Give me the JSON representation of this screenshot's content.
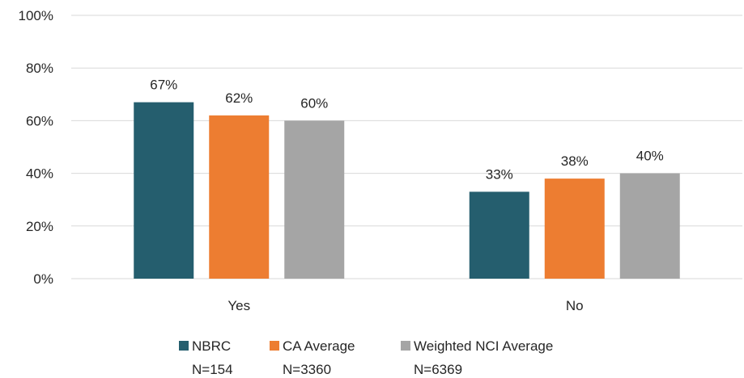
{
  "chart_data": {
    "type": "bar",
    "categories": [
      "Yes",
      "No"
    ],
    "series": [
      {
        "name": "NBRC",
        "sublabel": "N=154",
        "values": [
          67,
          33
        ],
        "labels": [
          "67%",
          "33%"
        ],
        "color": "#255E6E"
      },
      {
        "name": "CA Average",
        "sublabel": "N=3360",
        "values": [
          62,
          38
        ],
        "labels": [
          "62%",
          "38%"
        ],
        "color": "#ED7D31"
      },
      {
        "name": "Weighted NCI Average",
        "sublabel": "N=6369",
        "values": [
          60,
          40
        ],
        "labels": [
          "60%",
          "40%"
        ],
        "color": "#A5A5A5"
      }
    ],
    "yticks": [
      0,
      20,
      40,
      60,
      80,
      100
    ],
    "ytick_labels": [
      "0%",
      "20%",
      "40%",
      "60%",
      "80%",
      "100%"
    ],
    "ylim": [
      0,
      100
    ],
    "grid": true,
    "legend": "bottom"
  }
}
